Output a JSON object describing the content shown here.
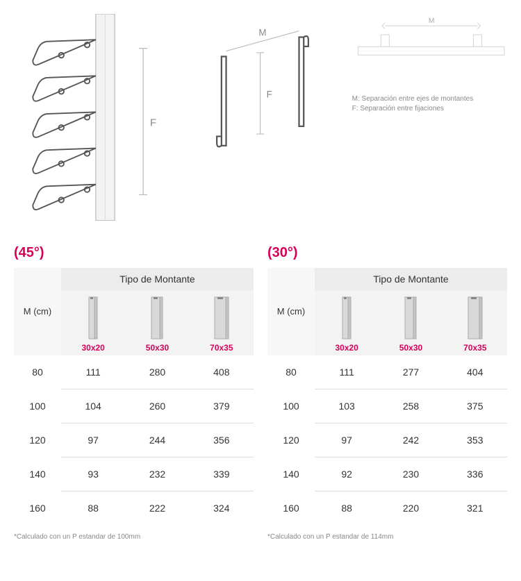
{
  "diagrams": {
    "labels": {
      "M": "M",
      "F": "F"
    },
    "legend": {
      "line1": "M: Separación entre ejes de montantes",
      "line2": "F: Separación entre fijaciones"
    }
  },
  "tables": [
    {
      "angle": "(45°)",
      "header": "Tipo de Montante",
      "m_label": "M (cm)",
      "profiles": [
        "30x20",
        "50x30",
        "70x35"
      ],
      "rows": [
        {
          "m": "80",
          "v": [
            "111",
            "280",
            "408"
          ]
        },
        {
          "m": "100",
          "v": [
            "104",
            "260",
            "379"
          ]
        },
        {
          "m": "120",
          "v": [
            "97",
            "244",
            "356"
          ]
        },
        {
          "m": "140",
          "v": [
            "93",
            "232",
            "339"
          ]
        },
        {
          "m": "160",
          "v": [
            "88",
            "222",
            "324"
          ]
        }
      ],
      "footnote": "*Calculado con un P estandar de 100mm"
    },
    {
      "angle": "(30°)",
      "header": "Tipo de Montante",
      "m_label": "M (cm)",
      "profiles": [
        "30x20",
        "50x30",
        "70x35"
      ],
      "rows": [
        {
          "m": "80",
          "v": [
            "111",
            "277",
            "404"
          ]
        },
        {
          "m": "100",
          "v": [
            "103",
            "258",
            "375"
          ]
        },
        {
          "m": "120",
          "v": [
            "97",
            "242",
            "353"
          ]
        },
        {
          "m": "140",
          "v": [
            "92",
            "230",
            "336"
          ]
        },
        {
          "m": "160",
          "v": [
            "88",
            "220",
            "321"
          ]
        }
      ],
      "footnote": "*Calculado con un P estandar de 114mm"
    }
  ],
  "colors": {
    "accent": "#d6005a",
    "gray_line": "#bbbbbb",
    "light_line": "#dddddd",
    "header_bg": "#ececec",
    "subheader_bg": "#f3f3f3",
    "text": "#333333",
    "muted": "#888888"
  },
  "profile_widths": [
    8,
    12,
    16
  ]
}
